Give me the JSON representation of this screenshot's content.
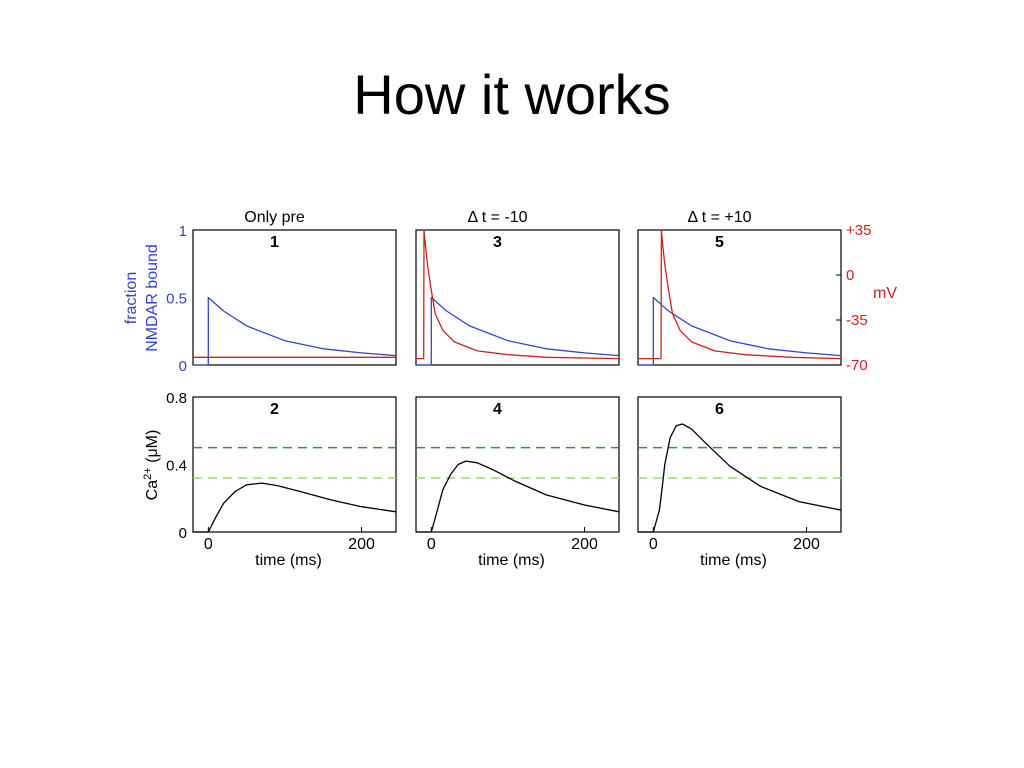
{
  "slide": {
    "title": "How it works"
  },
  "colors": {
    "nmdar": "#3344cc",
    "voltage": "#cc2222",
    "calcium": "#000000",
    "threshold_dark": "#2e9a2e",
    "threshold_light": "#99dd66"
  },
  "figure": {
    "left_axis_label_line1": "fraction",
    "left_axis_label_line2": "NMDAR bound",
    "right_axis_unit": "mV",
    "bottom_ylabel": {
      "base": "Ca",
      "sup": "2+",
      "unit": " (μM)"
    },
    "xlabel": "time (ms)",
    "top_yticks": [
      "1",
      "0.5",
      "0"
    ],
    "right_yticks": [
      "+35",
      "0",
      "-35",
      "-70"
    ],
    "bottom_yticks": [
      "0.8",
      "0.4",
      "0"
    ],
    "xticks": [
      "0",
      "200"
    ]
  },
  "chart_data": [
    {
      "type": "line",
      "title": "Only pre",
      "panel_label": "1",
      "xlim": [
        -20,
        245
      ],
      "ylim": [
        0,
        1
      ],
      "y2lim": [
        -70,
        35
      ],
      "series": [
        {
          "axis": "left",
          "x": [
            -20,
            0,
            0,
            20,
            50,
            100,
            150,
            200,
            245
          ],
          "y": [
            0,
            0,
            0.5,
            0.4,
            0.29,
            0.18,
            0.12,
            0.09,
            0.07
          ]
        },
        {
          "axis": "right",
          "x": [
            -20,
            245
          ],
          "y": [
            -64,
            -64
          ]
        }
      ]
    },
    {
      "type": "line",
      "title": "",
      "panel_label": "2",
      "xlim": [
        -20,
        245
      ],
      "ylim": [
        0,
        0.8
      ],
      "thresholds": [
        0.5,
        0.32
      ],
      "series": [
        {
          "x": [
            -20,
            0,
            10,
            20,
            35,
            50,
            70,
            90,
            120,
            160,
            200,
            245
          ],
          "y": [
            0,
            0,
            0.09,
            0.17,
            0.24,
            0.28,
            0.29,
            0.275,
            0.24,
            0.19,
            0.15,
            0.12
          ]
        }
      ]
    },
    {
      "type": "line",
      "title": "Δ t = -10",
      "panel_label": "3",
      "xlim": [
        -20,
        245
      ],
      "ylim": [
        0,
        1
      ],
      "y2lim": [
        -70,
        35
      ],
      "series": [
        {
          "axis": "left",
          "x": [
            -20,
            0,
            0,
            20,
            50,
            100,
            150,
            200,
            245
          ],
          "y": [
            0,
            0,
            0.5,
            0.4,
            0.29,
            0.18,
            0.12,
            0.09,
            0.07
          ]
        },
        {
          "axis": "right",
          "x": [
            -20,
            -10,
            -9.5,
            -8,
            -5,
            0,
            5,
            15,
            30,
            60,
            100,
            150,
            245
          ],
          "y": [
            -65,
            -65,
            35,
            25,
            8,
            -12,
            -30,
            -43,
            -52,
            -59,
            -62,
            -64,
            -65
          ]
        }
      ]
    },
    {
      "type": "line",
      "title": "",
      "panel_label": "4",
      "xlim": [
        -20,
        245
      ],
      "ylim": [
        0,
        0.8
      ],
      "thresholds": [
        0.5,
        0.32
      ],
      "series": [
        {
          "x": [
            -20,
            0,
            8,
            15,
            25,
            35,
            45,
            60,
            80,
            110,
            150,
            200,
            245
          ],
          "y": [
            0,
            0,
            0.13,
            0.25,
            0.34,
            0.4,
            0.42,
            0.41,
            0.37,
            0.3,
            0.22,
            0.16,
            0.12
          ]
        }
      ]
    },
    {
      "type": "line",
      "title": "Δ t = +10",
      "panel_label": "5",
      "xlim": [
        -20,
        245
      ],
      "ylim": [
        0,
        1
      ],
      "y2lim": [
        -70,
        35
      ],
      "series": [
        {
          "axis": "left",
          "x": [
            -20,
            0,
            0,
            10,
            20,
            50,
            100,
            150,
            200,
            245
          ],
          "y": [
            0,
            0,
            0.5,
            0.45,
            0.4,
            0.29,
            0.18,
            0.12,
            0.09,
            0.07
          ]
        },
        {
          "axis": "right",
          "x": [
            -20,
            10,
            10.5,
            12,
            15,
            20,
            25,
            35,
            50,
            80,
            120,
            180,
            245
          ],
          "y": [
            -65,
            -65,
            35,
            25,
            8,
            -12,
            -30,
            -43,
            -52,
            -59,
            -62,
            -64,
            -65
          ]
        }
      ]
    },
    {
      "type": "line",
      "title": "",
      "panel_label": "6",
      "xlim": [
        -20,
        245
      ],
      "ylim": [
        0,
        0.8
      ],
      "thresholds": [
        0.5,
        0.32
      ],
      "series": [
        {
          "x": [
            -20,
            0,
            8,
            11,
            15,
            22,
            30,
            38,
            50,
            70,
            100,
            140,
            190,
            245
          ],
          "y": [
            0,
            0,
            0.13,
            0.24,
            0.4,
            0.56,
            0.63,
            0.64,
            0.61,
            0.52,
            0.39,
            0.27,
            0.18,
            0.13
          ]
        }
      ]
    }
  ]
}
